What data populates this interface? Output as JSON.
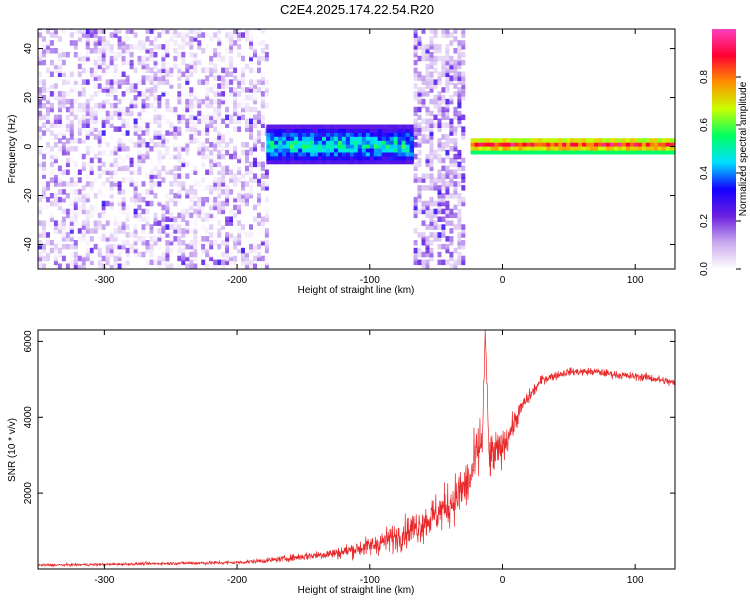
{
  "chart_data": [
    {
      "type": "heatmap",
      "title": "C2E4.2025.174.22.54.R20",
      "xlabel": "Height of straight line (km)",
      "ylabel": "Frequency (Hz)",
      "xlim": [
        -350,
        130
      ],
      "ylim": [
        -50,
        48
      ],
      "xticks": [
        "-300",
        "-200",
        "-100",
        "0",
        "100"
      ],
      "yticks": [
        "-40",
        "-20",
        "0",
        "20",
        "40"
      ],
      "xtick_values": [
        -300,
        -200,
        -100,
        0,
        100
      ],
      "ytick_values": [
        -40,
        -20,
        0,
        20,
        40
      ],
      "colorbar": {
        "label": "Normalized spectral amplitude",
        "range": [
          0,
          1
        ],
        "ticks": [
          "0.0",
          "0.2",
          "0.4",
          "0.6",
          "0.8"
        ],
        "tick_values": [
          0.0,
          0.2,
          0.4,
          0.6,
          0.8
        ],
        "colors": [
          "#ffffff",
          "#c9a8ee",
          "#6a1fe0",
          "#1400ff",
          "#00e0ff",
          "#00ff60",
          "#c8ff00",
          "#ff9000",
          "#ff0030",
          "#ff40c0"
        ]
      },
      "regions": [
        {
          "x_from": -350,
          "x_to": -178,
          "kind": "noise",
          "amplitude": [
            0.0,
            0.25
          ],
          "band_hz": [
            -50,
            48
          ]
        },
        {
          "x_from": -178,
          "x_to": -68,
          "kind": "band",
          "amplitude": [
            0.2,
            0.5
          ],
          "band_hz": [
            -7,
            8
          ],
          "center_hz": 0
        },
        {
          "x_from": -67,
          "x_to": -28,
          "kind": "noise",
          "amplitude": [
            0.05,
            0.3
          ],
          "band_hz": [
            -50,
            48
          ]
        },
        {
          "x_from": -24,
          "x_to": 130,
          "kind": "line",
          "amplitude": [
            0.5,
            0.95
          ],
          "band_hz": [
            -3,
            3
          ],
          "center_hz": 0
        }
      ]
    },
    {
      "type": "line",
      "xlabel": "Height of straight line (km)",
      "ylabel": "SNR (10 * v/v)",
      "xlim": [
        -350,
        130
      ],
      "ylim": [
        0,
        6300
      ],
      "xticks": [
        "-300",
        "-200",
        "-100",
        "0",
        "100"
      ],
      "yticks": [
        "2000",
        "4000",
        "6000"
      ],
      "xtick_values": [
        -300,
        -200,
        -100,
        0,
        100
      ],
      "ytick_values": [
        2000,
        4000,
        6000
      ],
      "series": [
        {
          "color": "#e8282a",
          "x": [
            -350,
            -300,
            -250,
            -200,
            -175,
            -150,
            -125,
            -100,
            -80,
            -60,
            -40,
            -25,
            -15,
            -13,
            -10,
            0,
            15,
            30,
            50,
            70,
            90,
            110,
            130
          ],
          "y": [
            100,
            120,
            150,
            170,
            230,
            330,
            420,
            600,
            850,
            1200,
            1700,
            2300,
            3500,
            6300,
            2900,
            3200,
            4300,
            5000,
            5200,
            5200,
            5100,
            5050,
            4900
          ],
          "noise": [
            40,
            40,
            50,
            60,
            80,
            120,
            180,
            300,
            450,
            550,
            700,
            800,
            1000,
            0,
            800,
            500,
            250,
            150,
            120,
            120,
            120,
            130,
            130
          ]
        }
      ]
    }
  ]
}
